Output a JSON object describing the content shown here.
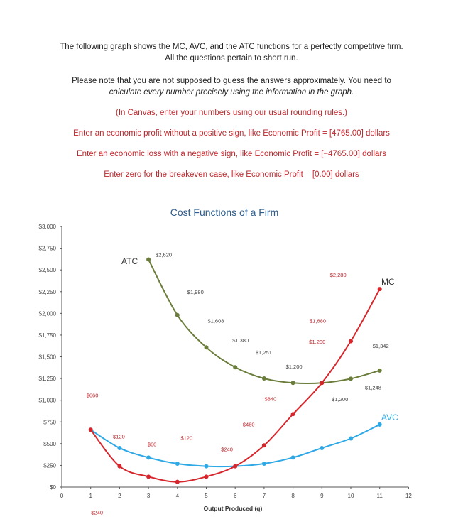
{
  "intro": {
    "line1": "The following graph shows the MC, AVC, and the ATC functions for a perfectly competitive firm.",
    "line2": "All the questions pertain to short run.",
    "line3": "Please note that you are not supposed to guess the answers approximately. You need to",
    "line4_pre": "calculate every number ",
    "line4_em": "precisely",
    "line4_post": " using the information in the graph.",
    "line5": "(In Canvas, enter your numbers using our usual rounding rules.)",
    "line6": "Enter an economic profit without a positive sign, like Economic Profit = [4765.00] dollars",
    "line7": "Enter an economic loss with a negative sign, like Economic Profit = [−4765.00] dollars",
    "line8": "Enter zero for the breakeven case, like Economic Profit = [0.00] dollars"
  },
  "chart_data": {
    "type": "line",
    "title": "Cost Functions of a Firm",
    "xlabel": "Output Produced (q)",
    "ylabel": "",
    "xlim": [
      0,
      12
    ],
    "ylim": [
      0,
      3000
    ],
    "x_ticks": [
      "0",
      "1",
      "2",
      "3",
      "4",
      "5",
      "6",
      "7",
      "8",
      "9",
      "10",
      "11",
      "12"
    ],
    "y_ticks": [
      "$0",
      "$250",
      "$500",
      "$750",
      "$1,000",
      "$1,250",
      "$1,500",
      "$1,750",
      "$2,000",
      "$2,250",
      "$2,500",
      "$2,750",
      "$3,000"
    ],
    "grid": false,
    "series": [
      {
        "name": "ATC",
        "color": "#6b7d3a",
        "x": [
          3,
          4,
          5,
          6,
          7,
          8,
          9,
          10,
          11
        ],
        "y": [
          2620,
          1980,
          1608,
          1380,
          1251,
          1200,
          1200,
          1248,
          1342
        ]
      },
      {
        "name": "MC",
        "color": "#d7262b",
        "x": [
          1,
          2,
          3,
          4,
          5,
          6,
          7,
          8,
          9,
          10,
          11
        ],
        "y": [
          660,
          240,
          120,
          60,
          120,
          240,
          480,
          840,
          1200,
          1680,
          2280
        ]
      },
      {
        "name": "AVC",
        "color": "#2fa9e6",
        "x": [
          1,
          2,
          3,
          4,
          5,
          6,
          7,
          8,
          9,
          10,
          11
        ],
        "y": [
          660,
          450,
          340,
          270,
          240,
          240,
          270,
          340,
          450,
          560,
          720
        ]
      }
    ],
    "annotations": [
      {
        "text": "$2,620",
        "x": 3,
        "y": 2620
      },
      {
        "text": "$1,980",
        "x": 4,
        "y": 1980
      },
      {
        "text": "$1,608",
        "x": 5,
        "y": 1608
      },
      {
        "text": "$1,380",
        "x": 6,
        "y": 1380
      },
      {
        "text": "$1,251",
        "x": 7,
        "y": 1251
      },
      {
        "text": "$1,200",
        "x": 8,
        "y": 1200
      },
      {
        "text": "$1,200",
        "x": 9,
        "y": 1200
      },
      {
        "text": "$1,248",
        "x": 10,
        "y": 1248
      },
      {
        "text": "$1,342",
        "x": 11,
        "y": 1342
      },
      {
        "text": "$660",
        "x": 1,
        "y": 660
      },
      {
        "text": "$240",
        "x": 2,
        "y": 240
      },
      {
        "text": "$120",
        "x": 3,
        "y": 120
      },
      {
        "text": "$60",
        "x": 4,
        "y": 60
      },
      {
        "text": "$120",
        "x": 5,
        "y": 120
      },
      {
        "text": "$240",
        "x": 6,
        "y": 240
      },
      {
        "text": "$480",
        "x": 7,
        "y": 480
      },
      {
        "text": "$840",
        "x": 8,
        "y": 840
      },
      {
        "text": "$1,200",
        "x": 9,
        "y": 1200
      },
      {
        "text": "$1,680",
        "x": 10,
        "y": 1680
      },
      {
        "text": "$2,280",
        "x": 11,
        "y": 2280
      }
    ]
  }
}
